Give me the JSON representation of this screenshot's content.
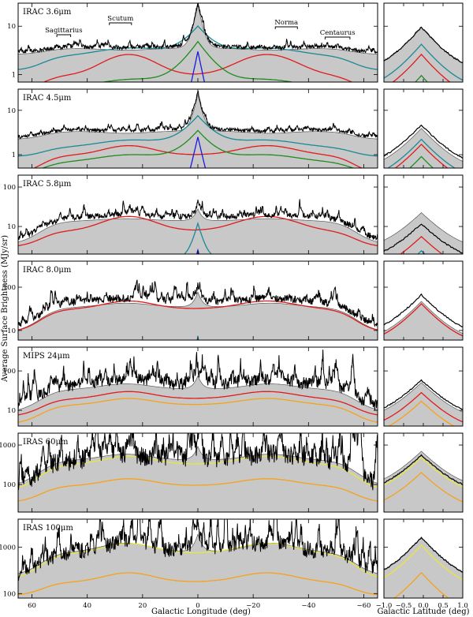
{
  "chart_data": {
    "type": "line",
    "ylabel": "Average Surface Brightness (MJy/sr)",
    "xlabel_longitude": "Galactic Longitude (deg)",
    "xlabel_latitude": "Galactic Latitude (deg)",
    "longitude_range": [
      65,
      -65
    ],
    "latitude_range": [
      -1.0,
      1.0
    ],
    "yscale": "log",
    "longitude_ticks": [
      {
        "v": 60,
        "t": "60"
      },
      {
        "v": 40,
        "t": "40"
      },
      {
        "v": 20,
        "t": "20"
      },
      {
        "v": 0,
        "t": "0"
      },
      {
        "v": -20,
        "t": "−20"
      },
      {
        "v": -40,
        "t": "−40"
      },
      {
        "v": -60,
        "t": "−60"
      }
    ],
    "latitude_ticks": [
      {
        "v": -1.0,
        "t": "−1.0"
      },
      {
        "v": -0.5,
        "t": "−0.5"
      },
      {
        "v": 0.0,
        "t": "0.0"
      },
      {
        "v": 0.5,
        "t": "0.5"
      },
      {
        "v": 1.0,
        "t": "1.0"
      }
    ],
    "regions": [
      {
        "name": "Sagittarius",
        "l_min": 46,
        "l_max": 51
      },
      {
        "name": "Scutum",
        "l_min": 24,
        "l_max": 32
      },
      {
        "name": "Norma",
        "l_min": -28,
        "l_max": -36
      },
      {
        "name": "Centaurus",
        "l_min": -46,
        "l_max": -55
      }
    ],
    "colors": {
      "observed": "#000000",
      "model_total": "#c8c8c8",
      "model_edge": "#5a5a5a",
      "red": "#e21b1b",
      "cyan": "#1a8a96",
      "green": "#1e8c1e",
      "blue": "#1a1ae0",
      "orange": "#f5a21a",
      "yellow": "#e7e73c"
    },
    "panels": [
      {
        "band": "IRAC 3.6μm",
        "ylim": [
          0.7,
          30
        ],
        "yticks": [
          {
            "v": 1,
            "t": "1"
          },
          {
            "v": 10,
            "t": "10"
          }
        ],
        "model_base": 3.5,
        "model_disk": 3.0,
        "model_spike": 25,
        "model_end": 2.6,
        "observed_factor": 1.1,
        "noise": 0.05,
        "components": [
          {
            "color": "red",
            "kind": "ring",
            "base": 1.0,
            "ring": 2.6,
            "end": 0.45
          },
          {
            "color": "cyan",
            "kind": "peak",
            "base": 2.5,
            "peak": 10,
            "end": 1.2
          },
          {
            "color": "green",
            "kind": "peak",
            "base": 0.55,
            "peak": 4.8,
            "end": 0.3
          },
          {
            "color": "blue",
            "kind": "spike",
            "base": 0.02,
            "peak": 3.0,
            "end": 0.01
          }
        ],
        "lat": {
          "model_peak": 8.5,
          "observed_peak": 8.6,
          "comps": [
            {
              "color": "cyan",
              "peak": 4.2
            },
            {
              "color": "red",
              "peak": 2.6
            },
            {
              "color": "green",
              "peak": 0.95
            }
          ]
        }
      },
      {
        "band": "IRAC 4.5μm",
        "ylim": [
          0.5,
          30
        ],
        "yticks": [
          {
            "v": 1,
            "t": "1"
          },
          {
            "v": 10,
            "t": "10"
          }
        ],
        "model_base": 3.4,
        "model_disk": 2.8,
        "model_spike": 20,
        "model_end": 2.2,
        "observed_factor": 1.1,
        "noise": 0.05,
        "components": [
          {
            "color": "red",
            "kind": "ring",
            "base": 1.0,
            "ring": 1.6,
            "end": 0.35
          },
          {
            "color": "cyan",
            "kind": "peak",
            "base": 1.5,
            "peak": 7.5,
            "end": 0.9
          },
          {
            "color": "green",
            "kind": "peak",
            "base": 0.7,
            "peak": 3.5,
            "end": 0.35
          },
          {
            "color": "blue",
            "kind": "spike",
            "base": 0.05,
            "peak": 2.5,
            "end": 0.02
          }
        ],
        "lat": {
          "model_peak": 3.5,
          "observed_peak": 4.2,
          "comps": [
            {
              "color": "cyan",
              "peak": 2.2
            },
            {
              "color": "red",
              "peak": 1.7
            },
            {
              "color": "green",
              "peak": 0.9
            }
          ]
        }
      },
      {
        "band": "IRAC 5.8μm",
        "ylim": [
          2,
          200
        ],
        "yticks": [
          {
            "v": 10,
            "t": "10"
          },
          {
            "v": 100,
            "t": "100"
          }
        ],
        "model_base": 14,
        "model_disk": 17,
        "model_spike": 14,
        "model_end": 3.5,
        "observed_factor": 1.25,
        "noise": 0.09,
        "components": [
          {
            "color": "red",
            "kind": "ring",
            "base": 8,
            "ring": 18,
            "end": 3.0
          },
          {
            "color": "cyan",
            "kind": "spike",
            "base": 1.5,
            "peak": 12,
            "end": 1.2
          },
          {
            "color": "blue",
            "kind": "spike",
            "base": 0.1,
            "peak": 2.5,
            "end": 0.05
          }
        ],
        "lat": {
          "model_peak": 20,
          "observed_peak": 10.5,
          "comps": [
            {
              "color": "red",
              "peak": 5.5
            },
            {
              "color": "cyan",
              "peak": 2.4
            }
          ]
        }
      },
      {
        "band": "IRAC 8.0μm",
        "ylim": [
          6,
          400
        ],
        "yticks": [
          {
            "v": 10,
            "t": "10"
          },
          {
            "v": 100,
            "t": "100"
          }
        ],
        "model_base": 35,
        "model_disk": 48,
        "model_spike": 42,
        "model_end": 9,
        "observed_factor": 1.3,
        "noise": 0.11,
        "components": [
          {
            "color": "red",
            "kind": "ring",
            "base": 32,
            "ring": 48,
            "end": 9
          },
          {
            "color": "cyan",
            "kind": "spike",
            "base": 0.5,
            "peak": 7,
            "end": 0.3
          }
        ],
        "lat": {
          "model_peak": 42,
          "observed_peak": 60,
          "comps": [
            {
              "color": "red",
              "peak": 41
            }
          ]
        }
      },
      {
        "band": "MIPS 24μm",
        "ylim": [
          4,
          400
        ],
        "yticks": [
          {
            "v": 10,
            "t": "10"
          },
          {
            "v": 100,
            "t": "100"
          }
        ],
        "model_base": 35,
        "model_disk": 55,
        "model_spike": 40,
        "model_end": 9,
        "observed_factor": 1.3,
        "noise": 0.2,
        "components": [
          {
            "color": "red",
            "kind": "ring",
            "base": 20,
            "ring": 30,
            "end": 7
          },
          {
            "color": "orange",
            "kind": "ring",
            "base": 14,
            "ring": 20,
            "end": 4.5
          }
        ],
        "lat": {
          "model_peak": 45,
          "observed_peak": 52,
          "comps": [
            {
              "color": "red",
              "peak": 28
            },
            {
              "color": "orange",
              "peak": 17
            }
          ]
        }
      },
      {
        "band": "IRAS 60μm",
        "ylim": [
          20,
          2000
        ],
        "yticks": [
          {
            "v": 100,
            "t": "100"
          },
          {
            "v": 1000,
            "t": "1000"
          }
        ],
        "model_base": 420,
        "model_disk": 700,
        "model_spike": 500,
        "model_end": 90,
        "observed_factor": 1.0,
        "noise": 0.32,
        "components": [
          {
            "color": "yellow",
            "kind": "ring",
            "base": 330,
            "ring": 520,
            "end": 70
          },
          {
            "color": "orange",
            "kind": "ring",
            "base": 95,
            "ring": 140,
            "end": 35
          }
        ],
        "lat": {
          "model_peak": 620,
          "observed_peak": 500,
          "comps": [
            {
              "color": "yellow",
              "peak": 480
            },
            {
              "color": "orange",
              "peak": 200
            }
          ]
        }
      },
      {
        "band": "IRAS 100μm",
        "ylim": [
          80,
          4000
        ],
        "yticks": [
          {
            "v": 100,
            "t": "100"
          },
          {
            "v": 1000,
            "t": "1000"
          }
        ],
        "model_base": 800,
        "model_disk": 1500,
        "model_spike": 1100,
        "model_end": 240,
        "observed_factor": 1.0,
        "noise": 0.22,
        "components": [
          {
            "color": "yellow",
            "kind": "ring",
            "base": 750,
            "ring": 1200,
            "end": 200
          },
          {
            "color": "orange",
            "kind": "ring",
            "base": 180,
            "ring": 280,
            "end": 90
          }
        ],
        "lat": {
          "model_peak": 1450,
          "observed_peak": 1450,
          "comps": [
            {
              "color": "yellow",
              "peak": 1100
            },
            {
              "color": "orange",
              "peak": 280
            }
          ]
        }
      }
    ]
  }
}
